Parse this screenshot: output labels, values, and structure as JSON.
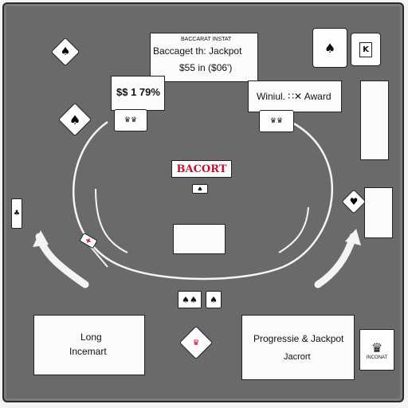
{
  "jackpot_panel": {
    "line1": "BACCARAT INSTAT",
    "line2": "Baccaget th: Jackpot",
    "line3": "$55 in ($06')"
  },
  "amount_display": "$$ 1 79%",
  "award_panel": "Winiul. ∷✕ Award",
  "bet_label": "BACORT",
  "long_panel": {
    "line1": "Long",
    "line2": "Incemart"
  },
  "progressive_panel": {
    "line1": "Progressie & Jackpot",
    "line2": "Jacrort"
  },
  "corner_card_label": "INCONAT",
  "suits": {
    "spade": "♠",
    "heart": "♥",
    "club": "♣"
  },
  "colors": {
    "felt": "#6a6a6a",
    "accent_red": "#c8102e",
    "card": "#fdfdfd"
  }
}
